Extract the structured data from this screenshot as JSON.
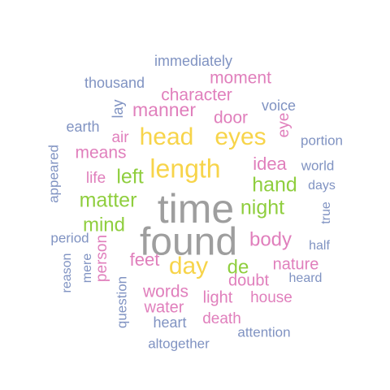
{
  "palette": {
    "gray": "#9e9e9e",
    "yellow": "#f7d44a",
    "green": "#8fce3e",
    "pink": "#e07fbc",
    "blue": "#8093c2"
  },
  "words": [
    {
      "text": "time",
      "color": "gray",
      "rot": 0
    },
    {
      "text": "found",
      "color": "gray",
      "rot": 0
    },
    {
      "text": "length",
      "color": "yellow",
      "rot": 0
    },
    {
      "text": "head",
      "color": "yellow",
      "rot": 0
    },
    {
      "text": "eyes",
      "color": "yellow",
      "rot": 0
    },
    {
      "text": "day",
      "color": "yellow",
      "rot": 0
    },
    {
      "text": "matter",
      "color": "green",
      "rot": 0
    },
    {
      "text": "night",
      "color": "green",
      "rot": 0
    },
    {
      "text": "left",
      "color": "green",
      "rot": 0
    },
    {
      "text": "hand",
      "color": "green",
      "rot": 0
    },
    {
      "text": "mind",
      "color": "green",
      "rot": 0
    },
    {
      "text": "de",
      "color": "green",
      "rot": 0
    },
    {
      "text": "manner",
      "color": "pink",
      "rot": 0
    },
    {
      "text": "body",
      "color": "pink",
      "rot": 0
    },
    {
      "text": "words",
      "color": "pink",
      "rot": 0
    },
    {
      "text": "feet",
      "color": "pink",
      "rot": 0
    },
    {
      "text": "means",
      "color": "pink",
      "rot": 0
    },
    {
      "text": "idea",
      "color": "pink",
      "rot": 0
    },
    {
      "text": "door",
      "color": "pink",
      "rot": 0
    },
    {
      "text": "character",
      "color": "pink",
      "rot": 0
    },
    {
      "text": "moment",
      "color": "pink",
      "rot": 0
    },
    {
      "text": "nature",
      "color": "pink",
      "rot": 0
    },
    {
      "text": "doubt",
      "color": "pink",
      "rot": 0
    },
    {
      "text": "light",
      "color": "pink",
      "rot": 0
    },
    {
      "text": "water",
      "color": "pink",
      "rot": 0
    },
    {
      "text": "death",
      "color": "pink",
      "rot": 0
    },
    {
      "text": "house",
      "color": "pink",
      "rot": 0
    },
    {
      "text": "life",
      "color": "pink",
      "rot": 0
    },
    {
      "text": "air",
      "color": "pink",
      "rot": 0
    },
    {
      "text": "person",
      "color": "pink",
      "rot": -90
    },
    {
      "text": "eye",
      "color": "pink",
      "rot": -90
    },
    {
      "text": "immediately",
      "color": "blue",
      "rot": 0
    },
    {
      "text": "thousand",
      "color": "blue",
      "rot": 0
    },
    {
      "text": "voice",
      "color": "blue",
      "rot": 0
    },
    {
      "text": "earth",
      "color": "blue",
      "rot": 0
    },
    {
      "text": "portion",
      "color": "blue",
      "rot": 0
    },
    {
      "text": "world",
      "color": "blue",
      "rot": 0
    },
    {
      "text": "days",
      "color": "blue",
      "rot": 0
    },
    {
      "text": "period",
      "color": "blue",
      "rot": 0
    },
    {
      "text": "half",
      "color": "blue",
      "rot": 0
    },
    {
      "text": "heard",
      "color": "blue",
      "rot": 0
    },
    {
      "text": "heart",
      "color": "blue",
      "rot": 0
    },
    {
      "text": "attention",
      "color": "blue",
      "rot": 0
    },
    {
      "text": "altogether",
      "color": "blue",
      "rot": 0
    },
    {
      "text": "lay",
      "color": "blue",
      "rot": -90
    },
    {
      "text": "appeared",
      "color": "blue",
      "rot": -90
    },
    {
      "text": "true",
      "color": "blue",
      "rot": -90
    },
    {
      "text": "reason",
      "color": "blue",
      "rot": -90
    },
    {
      "text": "mere",
      "color": "blue",
      "rot": -90
    },
    {
      "text": "question",
      "color": "blue",
      "rot": -90
    }
  ]
}
